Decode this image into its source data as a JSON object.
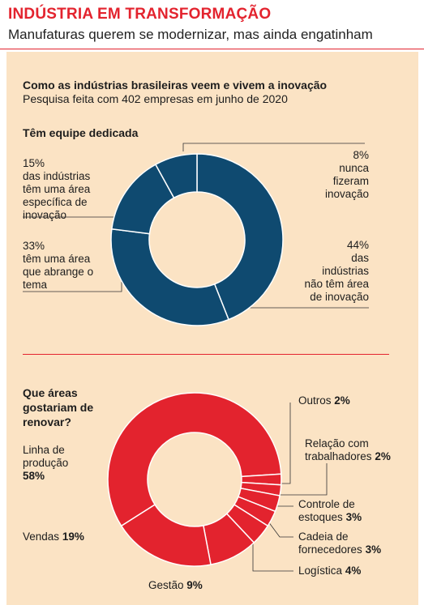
{
  "header": {
    "title": "INDÚSTRIA EM TRANSFORMAÇÃO",
    "subtitle": "Manufaturas querem se modernizar, mas ainda engatinham"
  },
  "box": {
    "title": "Como as indústrias brasileiras veem e vivem a inovação",
    "subtitle": "Pesquisa feita com 402 empresas em junho de 2020"
  },
  "colors": {
    "accent": "#e3232e",
    "navy": "#0f4a70",
    "panel": "#fbe3c4"
  },
  "chart_data": [
    {
      "type": "donut",
      "title": "Têm equipe dedicada",
      "series": [
        {
          "pct": "44%",
          "label": "das indústrias não têm área de inovação",
          "value": 44
        },
        {
          "pct": "33%",
          "label": "têm uma área que abrange o tema",
          "value": 33
        },
        {
          "pct": "15%",
          "label": "das indústrias têm uma área específica de inovação",
          "value": 15
        },
        {
          "pct": "8%",
          "label": "nunca fizeram inovação",
          "value": 8
        }
      ]
    },
    {
      "type": "donut",
      "title": "Que áreas gostariam de renovar?",
      "series": [
        {
          "label": "Linha de produção",
          "pct": "58%",
          "value": 58
        },
        {
          "label": "Vendas",
          "pct": "19%",
          "value": 19
        },
        {
          "label": "Gestão",
          "pct": "9%",
          "value": 9
        },
        {
          "label": "Logística",
          "pct": "4%",
          "value": 4
        },
        {
          "label": "Cadeia de fornecedores",
          "pct": "3%",
          "value": 3
        },
        {
          "label": "Controle de estoques",
          "pct": "3%",
          "value": 3
        },
        {
          "label": "Relação com trabalhadores",
          "pct": "2%",
          "value": 2
        },
        {
          "label": "Outros",
          "pct": "2%",
          "value": 2
        }
      ]
    }
  ]
}
